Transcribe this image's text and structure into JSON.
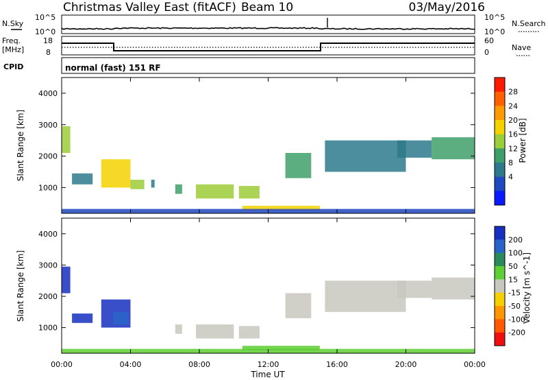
{
  "header": {
    "radar": "Christmas Valley East (fitACF)",
    "beam": "Beam 10",
    "date": "03/May/2016"
  },
  "noise_panel": {
    "left_label": "N.Sky",
    "right_label": "N.Search",
    "left_ticks": [
      "10^5",
      "10^0"
    ],
    "right_ticks": [
      "10^5",
      "10^0"
    ]
  },
  "freq_panel": {
    "left_label_1": "Freq.",
    "left_label_2": "[MHz]",
    "right_label": "Nave",
    "left_ticks": [
      "18",
      "8"
    ],
    "right_ticks": [
      "60",
      "0"
    ]
  },
  "cpid_panel": {
    "label": "CPID",
    "text": "normal (fast) 151 RF"
  },
  "chart_data": [
    {
      "type": "heatmap",
      "title": "Power",
      "ylabel": "Slant Range [km]",
      "xlabel": "",
      "ylim": [
        180,
        4500
      ],
      "xlim": [
        0,
        24
      ],
      "y_ticks": [
        1000,
        2000,
        3000,
        4000
      ],
      "x_tick_labels": [
        "00:00",
        "04:00",
        "08:00",
        "12:00",
        "16:00",
        "20:00",
        "00:00"
      ],
      "colorbar_label": "Power [dB]",
      "colorbar_ticks": [
        "28",
        "24",
        "20",
        "16",
        "12",
        "8",
        "4"
      ],
      "colorbar_colors": [
        "#ff1a00",
        "#ff6000",
        "#ff9a00",
        "#f4d200",
        "#9ccd3a",
        "#3f9f6a",
        "#2d7a8c",
        "#2048c0",
        "#0a1aff"
      ],
      "regions": [
        {
          "t0": 0.0,
          "t1": 0.5,
          "r0": 2100,
          "r1": 2950,
          "value": 18
        },
        {
          "t0": 0.6,
          "t1": 1.8,
          "r0": 1100,
          "r1": 1450,
          "value": 8
        },
        {
          "t0": 2.3,
          "t1": 4.0,
          "r0": 1000,
          "r1": 1900,
          "value": 22
        },
        {
          "t0": 4.0,
          "t1": 4.8,
          "r0": 950,
          "r1": 1250,
          "value": 16
        },
        {
          "t0": 5.2,
          "t1": 5.4,
          "r0": 1000,
          "r1": 1250,
          "value": 8
        },
        {
          "t0": 6.6,
          "t1": 7.0,
          "r0": 800,
          "r1": 1100,
          "value": 14
        },
        {
          "t0": 7.8,
          "t1": 10.0,
          "r0": 650,
          "r1": 1100,
          "value": 18
        },
        {
          "t0": 10.3,
          "t1": 11.5,
          "r0": 650,
          "r1": 1050,
          "value": 16
        },
        {
          "t0": 10.5,
          "t1": 15.0,
          "r0": 270,
          "r1": 420,
          "value": 20
        },
        {
          "t0": 13.0,
          "t1": 14.5,
          "r0": 1300,
          "r1": 2100,
          "value": 12
        },
        {
          "t0": 15.3,
          "t1": 20.0,
          "r0": 1500,
          "r1": 2500,
          "value": 8
        },
        {
          "t0": 19.5,
          "t1": 21.5,
          "r0": 1950,
          "r1": 2500,
          "value": 10
        },
        {
          "t0": 21.5,
          "t1": 24.0,
          "r0": 1900,
          "r1": 2600,
          "value": 14
        },
        {
          "t0": 0.0,
          "t1": 24.0,
          "r0": 180,
          "r1": 320,
          "value": 6
        }
      ]
    },
    {
      "type": "heatmap",
      "title": "Velocity",
      "ylabel": "Slant Range [km]",
      "xlabel": "Time UT",
      "ylim": [
        180,
        4500
      ],
      "xlim": [
        0,
        24
      ],
      "y_ticks": [
        1000,
        2000,
        3000,
        4000
      ],
      "x_tick_labels": [
        "00:00",
        "04:00",
        "08:00",
        "12:00",
        "16:00",
        "20:00",
        "00:00"
      ],
      "colorbar_label": "Velocity [m s^-1]",
      "colorbar_ticks": [
        "200",
        "100",
        "50",
        "15",
        "-15",
        "-50",
        "-100",
        "-200"
      ],
      "colorbar_colors": [
        "#1630c0",
        "#2a64c8",
        "#2c8a5a",
        "#5ecf34",
        "#c8c8c0",
        "#f4d000",
        "#ff9600",
        "#ff5a00",
        "#ee1010"
      ],
      "regions": [
        {
          "t0": 0.0,
          "t1": 0.5,
          "r0": 2100,
          "r1": 2950,
          "value": 200
        },
        {
          "t0": 0.6,
          "t1": 1.8,
          "r0": 1150,
          "r1": 1450,
          "value": 200
        },
        {
          "t0": 2.3,
          "t1": 4.0,
          "r0": 1000,
          "r1": 1900,
          "value": 200
        },
        {
          "t0": 3.0,
          "t1": 3.9,
          "r0": 1100,
          "r1": 1500,
          "value": 100
        },
        {
          "t0": 6.6,
          "t1": 7.0,
          "r0": 800,
          "r1": 1100,
          "value": 0
        },
        {
          "t0": 7.8,
          "t1": 10.0,
          "r0": 650,
          "r1": 1100,
          "value": 0
        },
        {
          "t0": 10.3,
          "t1": 11.5,
          "r0": 650,
          "r1": 1050,
          "value": 0
        },
        {
          "t0": 10.5,
          "t1": 15.0,
          "r0": 270,
          "r1": 420,
          "value": 30
        },
        {
          "t0": 13.0,
          "t1": 14.5,
          "r0": 1300,
          "r1": 2100,
          "value": 0
        },
        {
          "t0": 15.3,
          "t1": 20.0,
          "r0": 1500,
          "r1": 2500,
          "value": 0
        },
        {
          "t0": 19.5,
          "t1": 21.5,
          "r0": 1950,
          "r1": 2500,
          "value": 0
        },
        {
          "t0": 21.5,
          "t1": 24.0,
          "r0": 1900,
          "r1": 2600,
          "value": 0
        },
        {
          "t0": 0.0,
          "t1": 24.0,
          "r0": 180,
          "r1": 320,
          "value": 30
        }
      ]
    }
  ]
}
